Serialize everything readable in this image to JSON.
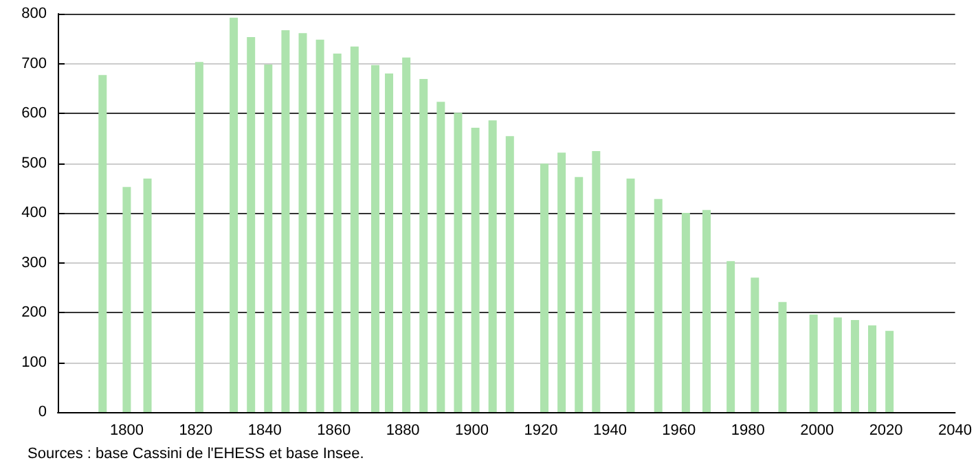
{
  "chart_data": {
    "type": "bar",
    "color": "#ade3ad",
    "x": [
      1793,
      1800,
      1806,
      1821,
      1831,
      1836,
      1841,
      1846,
      1851,
      1856,
      1861,
      1866,
      1872,
      1876,
      1881,
      1886,
      1891,
      1896,
      1901,
      1906,
      1911,
      1921,
      1926,
      1931,
      1936,
      1946,
      1954,
      1962,
      1968,
      1975,
      1982,
      1990,
      1999,
      2006,
      2011,
      2016,
      2021
    ],
    "values": [
      677,
      452,
      469,
      703,
      792,
      753,
      698,
      767,
      761,
      748,
      720,
      734,
      697,
      680,
      712,
      669,
      623,
      601,
      571,
      586,
      554,
      499,
      521,
      472,
      524,
      469,
      428,
      400,
      406,
      303,
      270,
      221,
      196,
      190,
      185,
      174,
      163
    ],
    "xlim": [
      1780,
      2040
    ],
    "xticks": [
      1800,
      1820,
      1840,
      1860,
      1880,
      1900,
      1920,
      1940,
      1960,
      1980,
      2000,
      2020,
      2040
    ],
    "ylim": [
      0,
      800
    ],
    "yticks": [
      0,
      100,
      200,
      300,
      400,
      500,
      600,
      700,
      800
    ],
    "grid": "y",
    "annotations": [
      "Sources : base Cassini de l'EHESS et base Insee."
    ]
  }
}
